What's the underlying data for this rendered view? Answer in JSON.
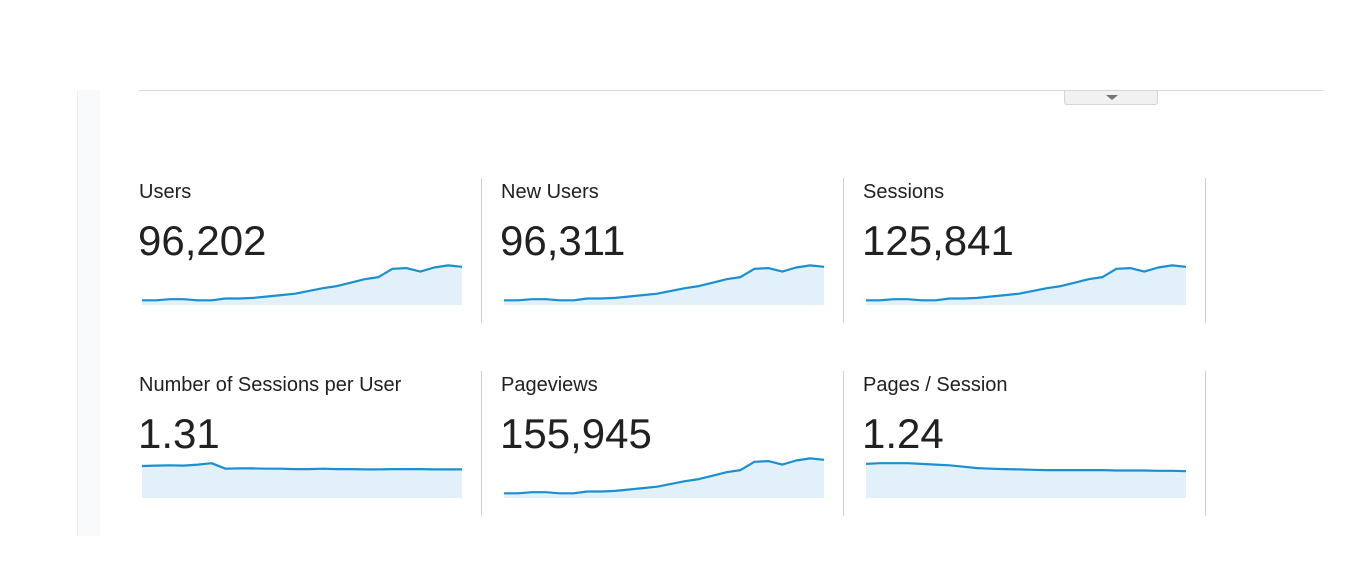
{
  "colors": {
    "line": "#1a8fd1",
    "fill": "#e1f0f9"
  },
  "icons": {
    "dropdown": "caret-down-icon"
  },
  "metrics": [
    {
      "label": "Users",
      "value": "96,202",
      "trend": [
        0.5,
        0.5,
        0.8,
        0.8,
        0.5,
        0.5,
        1.0,
        1.0,
        1.2,
        1.6,
        2.0,
        2.4,
        3.2,
        4.0,
        4.6,
        5.6,
        6.6,
        7.2,
        9.6,
        9.8,
        8.8,
        10.0,
        10.6,
        10.2
      ]
    },
    {
      "label": "New Users",
      "value": "96,311",
      "trend": [
        0.5,
        0.5,
        0.8,
        0.8,
        0.5,
        0.5,
        1.0,
        1.0,
        1.2,
        1.6,
        2.0,
        2.4,
        3.2,
        4.0,
        4.6,
        5.6,
        6.6,
        7.2,
        9.6,
        9.8,
        8.8,
        10.0,
        10.6,
        10.2
      ]
    },
    {
      "label": "Sessions",
      "value": "125,841",
      "trend": [
        0.5,
        0.5,
        0.8,
        0.8,
        0.5,
        0.5,
        1.0,
        1.0,
        1.2,
        1.6,
        2.0,
        2.4,
        3.2,
        4.0,
        4.6,
        5.6,
        6.6,
        7.2,
        9.6,
        9.8,
        8.8,
        10.0,
        10.6,
        10.2
      ]
    },
    {
      "label": "Number of Sessions per User",
      "value": "1.31",
      "trend": [
        8.4,
        8.5,
        8.6,
        8.5,
        8.8,
        9.2,
        7.6,
        7.7,
        7.7,
        7.6,
        7.6,
        7.5,
        7.5,
        7.6,
        7.5,
        7.5,
        7.4,
        7.4,
        7.5,
        7.5,
        7.5,
        7.4,
        7.4,
        7.4
      ]
    },
    {
      "label": "Pageviews",
      "value": "155,945",
      "trend": [
        0.5,
        0.5,
        0.8,
        0.8,
        0.5,
        0.5,
        1.0,
        1.0,
        1.2,
        1.6,
        2.0,
        2.4,
        3.2,
        4.0,
        4.6,
        5.6,
        6.6,
        7.2,
        9.6,
        9.8,
        8.8,
        10.0,
        10.6,
        10.2
      ]
    },
    {
      "label": "Pages / Session",
      "value": "1.24",
      "trend": [
        9.0,
        9.2,
        9.2,
        9.2,
        9.0,
        8.8,
        8.6,
        8.2,
        7.8,
        7.6,
        7.5,
        7.4,
        7.3,
        7.2,
        7.2,
        7.2,
        7.2,
        7.2,
        7.1,
        7.1,
        7.1,
        7.0,
        7.0,
        6.9
      ]
    }
  ]
}
